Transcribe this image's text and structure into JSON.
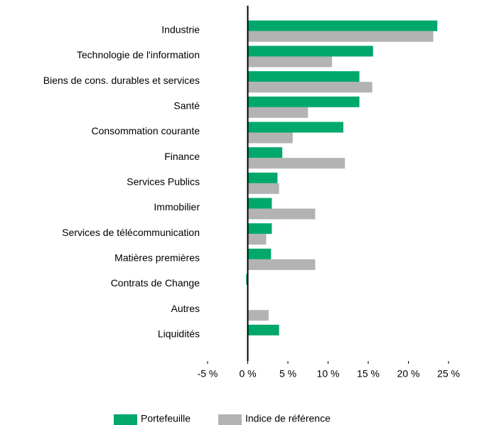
{
  "chart_data": {
    "type": "bar",
    "orientation": "horizontal",
    "categories": [
      "Industrie",
      "Technologie de l'information",
      "Biens de cons. durables et services",
      "Santé",
      "Consommation courante",
      "Finance",
      "Services Publics",
      "Immobilier",
      "Services de télécommunication",
      "Matières premières",
      "Contrats de Change",
      "Autres",
      "Liquidités"
    ],
    "series": [
      {
        "name": "Portefeuille",
        "color": "#00a86b",
        "values": [
          23.6,
          15.6,
          13.9,
          13.9,
          11.9,
          4.3,
          3.7,
          3.0,
          3.0,
          2.9,
          -0.2,
          null,
          3.9
        ]
      },
      {
        "name": "Indice de référence",
        "color": "#b3b3b3",
        "values": [
          23.1,
          10.5,
          15.5,
          7.5,
          5.6,
          12.1,
          3.9,
          8.4,
          2.3,
          8.4,
          null,
          2.6,
          null
        ]
      }
    ],
    "xlim": [
      -5,
      25
    ],
    "xticks": [
      {
        "value": -5,
        "label": "-5 %"
      },
      {
        "value": 0,
        "label": "0 %"
      },
      {
        "value": 5,
        "label": "5 %"
      },
      {
        "value": 10,
        "label": "10 %"
      },
      {
        "value": 15,
        "label": "15 %"
      },
      {
        "value": 20,
        "label": "20 %"
      },
      {
        "value": 25,
        "label": "25 %"
      }
    ],
    "legend": "bottom"
  }
}
